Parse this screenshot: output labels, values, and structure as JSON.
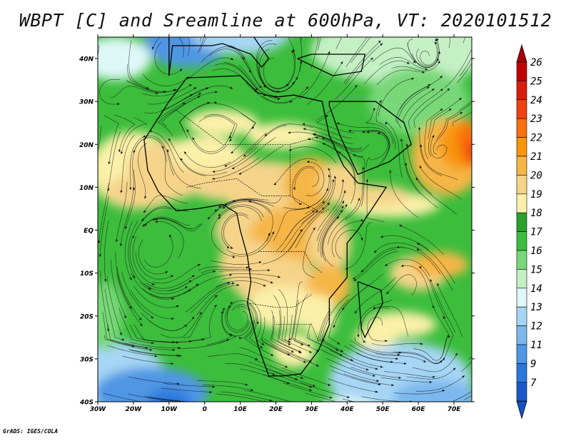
{
  "title": "WBPT [C] and Sreamline at 600hPa, VT: 2020101512",
  "footer": "GrADS: IGES/COLA",
  "map": {
    "lon_range": [
      -30,
      75
    ],
    "lat_range": [
      -40,
      45
    ],
    "x_ticks": [
      "30W",
      "20W",
      "10W",
      "0",
      "10E",
      "20E",
      "30E",
      "40E",
      "50E",
      "60E",
      "70E"
    ],
    "x_tick_values": [
      -30,
      -20,
      -10,
      0,
      10,
      20,
      30,
      40,
      50,
      60,
      70
    ],
    "y_ticks": [
      "40N",
      "30N",
      "20N",
      "10N",
      "EQ",
      "10S",
      "20S",
      "30S",
      "40S"
    ],
    "y_tick_values": [
      40,
      30,
      20,
      10,
      0,
      -10,
      -20,
      -30,
      -40
    ]
  },
  "colorbar": {
    "labels": [
      "26",
      "25",
      "24",
      "23",
      "22",
      "21",
      "20",
      "19",
      "18",
      "17",
      "16",
      "15",
      "14",
      "13",
      "12",
      "11",
      "9",
      "7"
    ],
    "colors": [
      "#c10000",
      "#d91c0c",
      "#f0420e",
      "#f8700f",
      "#f8950f",
      "#f5b646",
      "#f5d48a",
      "#fbf0a8",
      "#2ba02b",
      "#3cbd3c",
      "#78d878",
      "#c4f0c4",
      "#def7f7",
      "#a6d6f4",
      "#7bb8ee",
      "#4f96e4",
      "#2b78dc",
      "#1d58c8"
    ],
    "cap_top": "#a80000",
    "cap_bottom": "#1550c0"
  },
  "chart_data": {
    "type": "heatmap",
    "title": "WBPT [C] and Sreamline at 600hPa, VT: 2020101512",
    "variable": "WBPT [C]",
    "level": "600hPa",
    "valid_time": "2020101512",
    "x_range": [
      -30,
      75
    ],
    "y_range": [
      -40,
      45
    ],
    "levels": [
      7,
      9,
      11,
      12,
      13,
      14,
      15,
      16,
      17,
      18,
      19,
      20,
      21,
      22,
      23,
      24,
      25,
      26
    ]
  }
}
